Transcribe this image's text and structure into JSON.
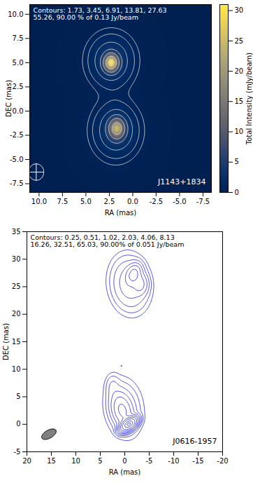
{
  "chart_data": [
    {
      "type": "image",
      "title": "J1143+1834",
      "annotation": [
        "Contours: 1.73, 3.45, 6.91, 13.81, 27.63",
        "55.26, 90.00 % of 0.13 Jy/beam"
      ],
      "contour_levels": [
        1.73,
        3.45,
        6.91,
        13.81,
        27.63,
        55.26,
        90.0
      ],
      "x_label": "RA (mas)",
      "y_label": "DEC (mas)",
      "xlim": [
        11,
        -8.4
      ],
      "xticks": [
        {
          "value": 10,
          "label": "10.0"
        },
        {
          "value": 7.5,
          "label": "7.5"
        },
        {
          "value": 5,
          "label": "5.0"
        },
        {
          "value": 2.5,
          "label": "2.5"
        },
        {
          "value": 0,
          "label": "0.0"
        },
        {
          "value": -2.5,
          "label": "-2.5"
        },
        {
          "value": -5,
          "label": "-5.0"
        },
        {
          "value": -7.5,
          "label": "-7.5"
        }
      ],
      "ylim": [
        -8.4,
        11
      ],
      "yticks": [
        {
          "value": -7.5,
          "label": "-7.5"
        },
        {
          "value": -5,
          "label": "-5.0"
        },
        {
          "value": -2.5,
          "label": "-2.5"
        },
        {
          "value": 0,
          "label": "0.0"
        },
        {
          "value": 2.5,
          "label": "2.5"
        },
        {
          "value": 5,
          "label": "5.0"
        },
        {
          "value": 7.5,
          "label": "7.5"
        },
        {
          "value": 10,
          "label": "10.0"
        }
      ],
      "color": "#dddddd",
      "colorbar": {
        "label": "Total Intensity (mJy/beam)",
        "lim": [
          0,
          31
        ],
        "ticks": [
          0,
          5,
          10,
          15,
          20,
          25,
          30
        ]
      },
      "components": [
        {
          "x": 2.3,
          "y": 5.0,
          "peak": 27,
          "major": 1.3,
          "minor": 1.1,
          "pa": 0
        },
        {
          "x": 1.7,
          "y": -1.8,
          "peak": 21,
          "major": 1.5,
          "minor": 1.2,
          "pa": 0
        },
        {
          "x": 2.3,
          "y": 5.2,
          "peak": 4,
          "major": 4.0,
          "minor": 3.6,
          "pa": 0
        },
        {
          "x": 1.8,
          "y": -2.0,
          "peak": 4,
          "major": 4.2,
          "minor": 3.6,
          "pa": 0
        }
      ],
      "beam": {
        "x": 10.3,
        "y": -6.3,
        "major": 1.7,
        "minor": 1.6,
        "pa": 0
      }
    },
    {
      "type": "contour",
      "title": "J0616-1957",
      "annotation": [
        "Contours: 0.25, 0.51, 1.02, 2.03, 4.06, 8.13",
        "16.26, 32.51, 65.03, 90.00% of 0.051 Jy/beam"
      ],
      "contour_levels": [
        0.25,
        0.51,
        1.02,
        2.03,
        4.06,
        8.13,
        16.26,
        32.51,
        65.03,
        90.0
      ],
      "x_label": "RA (mas)",
      "y_label": "DEC (mas)",
      "xlim": [
        20,
        -20
      ],
      "xticks": [
        20,
        15,
        10,
        5,
        0,
        -5,
        -10,
        -15,
        -20
      ],
      "ylim": [
        -5,
        35
      ],
      "yticks": [
        -5,
        0,
        5,
        10,
        15,
        20,
        25,
        30,
        35
      ],
      "color": "#2323d6",
      "components": [
        {
          "x": -0.8,
          "y": 0.0,
          "peak": 46,
          "major": 2.2,
          "minor": 1.2,
          "pa": -60
        },
        {
          "x": 0.5,
          "y": 2.5,
          "peak": 4,
          "major": 4.0,
          "minor": 2.5,
          "pa": 20
        },
        {
          "x": 0.2,
          "y": 3.0,
          "peak": 0.8,
          "major": 7.0,
          "minor": 5.0,
          "pa": 10
        },
        {
          "x": 2.5,
          "y": 7.0,
          "peak": 0.4,
          "major": 3.0,
          "minor": 2.0,
          "pa": 0
        },
        {
          "x": 0.6,
          "y": 10.6,
          "peak": 0.12,
          "major": 0.6,
          "minor": 0.5,
          "pa": 0
        },
        {
          "x": -1.0,
          "y": 25.5,
          "peak": 1.5,
          "major": 6.5,
          "minor": 5.0,
          "pa": 10
        },
        {
          "x": -1.8,
          "y": 27.3,
          "peak": 4.5,
          "major": 2.5,
          "minor": 1.8,
          "pa": -30
        },
        {
          "x": -3.2,
          "y": 25.5,
          "peak": 2,
          "major": 2.5,
          "minor": 2.0,
          "pa": 0
        }
      ],
      "beam": {
        "x": 15.5,
        "y": -1.8,
        "major": 3.2,
        "minor": 1.5,
        "pa": -65
      }
    }
  ]
}
